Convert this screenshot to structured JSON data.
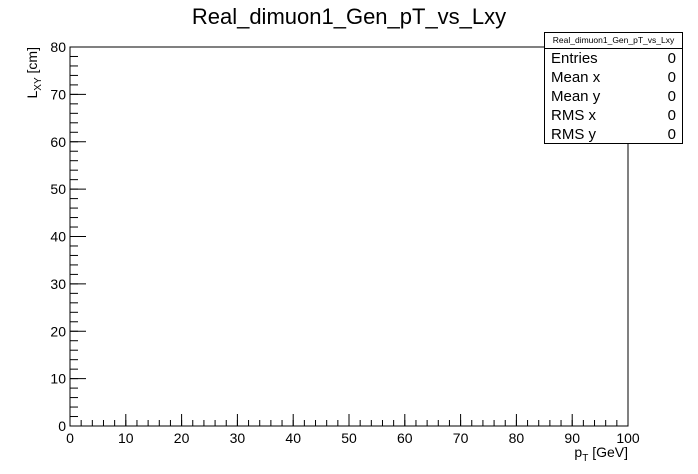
{
  "chart_data": {
    "type": "heatmap",
    "title": "Real_dimuon1_Gen_pT_vs_Lxy",
    "xlabel": {
      "main": "p",
      "sub": "T",
      "rest": " [GeV]"
    },
    "ylabel": {
      "main": "L",
      "sub": "XY",
      "rest": " [cm]"
    },
    "xlim": [
      0,
      100
    ],
    "ylim": [
      0,
      80
    ],
    "xticks": [
      0,
      10,
      20,
      30,
      40,
      50,
      60,
      70,
      80,
      90,
      100
    ],
    "yticks": [
      0,
      10,
      20,
      30,
      40,
      50,
      60,
      70,
      80
    ],
    "x_minor_step": 2,
    "y_minor_step": 2,
    "points": [],
    "grid": false
  },
  "stats": {
    "title": "Real_dimuon1_Gen_pT_vs_Lxy",
    "rows": [
      {
        "label": "Entries",
        "value": "0"
      },
      {
        "label": "Mean x",
        "value": "0"
      },
      {
        "label": "Mean y",
        "value": "0"
      },
      {
        "label": "RMS x",
        "value": "0"
      },
      {
        "label": "RMS y",
        "value": "0"
      }
    ]
  }
}
